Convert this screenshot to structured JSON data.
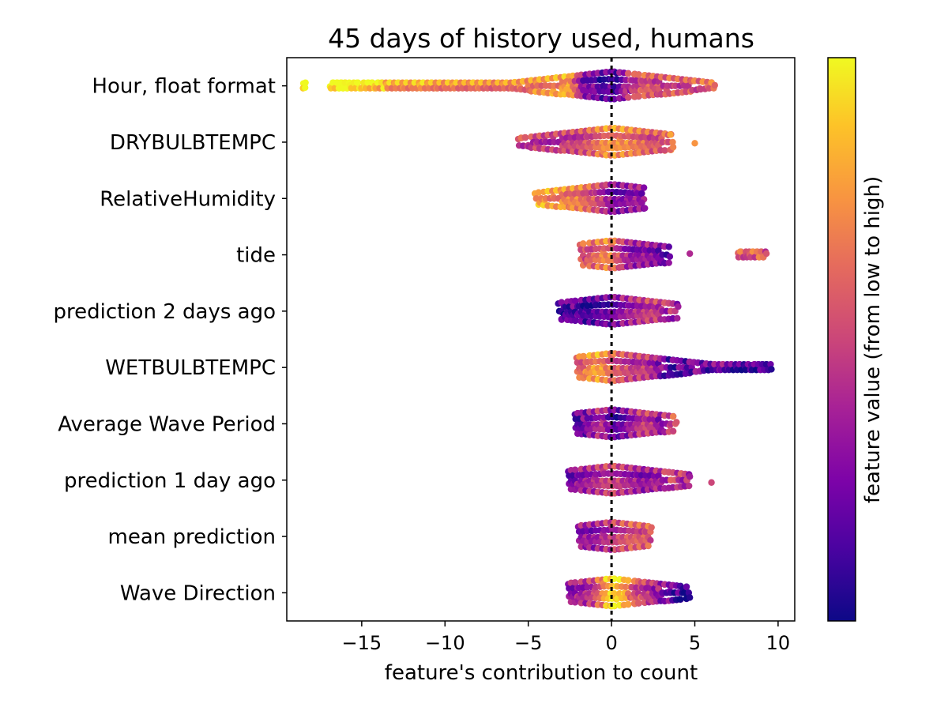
{
  "chart_data": {
    "type": "scatter",
    "subtype": "beeswarm",
    "title": "45 days of history used, humans",
    "xlabel": "feature's contribution to count",
    "ylabel": "",
    "xlim": [
      -19.5,
      11
    ],
    "xticks": [
      -15,
      -10,
      -5,
      0,
      5,
      10
    ],
    "xtick_labels": [
      "−15",
      "−10",
      "−5",
      "0",
      "5",
      "10"
    ],
    "reference_line_x": 0,
    "colormap": "plasma",
    "colorbar_label": "feature value (from low to high)",
    "colors": {
      "low": "#0d0887",
      "mid": "#cc4778",
      "high": "#f0f921"
    },
    "grid": false,
    "features": [
      {
        "name": "Hour, float format",
        "points": [
          [
            -18.5,
            1.0
          ],
          [
            -18.4,
            1.0
          ],
          [
            -16.9,
            1.0
          ],
          [
            -15.7,
            0.98
          ],
          [
            -15.4,
            0.97
          ],
          [
            -15.1,
            0.97
          ],
          [
            -14.8,
            0.95
          ],
          [
            -14.2,
            0.9
          ],
          [
            -13.5,
            0.82
          ],
          [
            -13.0,
            0.78
          ],
          [
            -12.5,
            0.8
          ],
          [
            -12.0,
            0.75
          ],
          [
            -11.5,
            0.85
          ],
          [
            -11.0,
            0.78
          ],
          [
            -10.5,
            0.75
          ],
          [
            -10.0,
            0.72
          ],
          [
            -9.5,
            0.8
          ],
          [
            -9.0,
            0.7
          ],
          [
            -8.5,
            0.72
          ],
          [
            -8.0,
            0.78
          ],
          [
            -7.5,
            0.7
          ],
          [
            -7.0,
            0.68
          ],
          [
            -6.5,
            0.75
          ],
          [
            -6.0,
            0.7
          ],
          [
            -5.5,
            0.72
          ],
          [
            -5.0,
            0.68
          ],
          [
            -4.5,
            0.75
          ],
          [
            -4.0,
            0.7
          ],
          [
            -3.5,
            0.8
          ],
          [
            -3.0,
            0.72
          ],
          [
            -2.5,
            0.85
          ],
          [
            -2.0,
            0.5
          ],
          [
            -1.5,
            0.2
          ],
          [
            -1.0,
            0.3
          ],
          [
            -0.5,
            0.1
          ],
          [
            0.0,
            0.25
          ],
          [
            0.3,
            0.05
          ],
          [
            0.8,
            0.4
          ],
          [
            1.2,
            0.45
          ],
          [
            1.8,
            0.55
          ],
          [
            2.3,
            0.6
          ],
          [
            2.8,
            0.5
          ],
          [
            3.3,
            0.55
          ],
          [
            3.8,
            0.6
          ],
          [
            4.3,
            0.5
          ],
          [
            4.8,
            0.6
          ],
          [
            5.3,
            0.55
          ],
          [
            5.8,
            0.65
          ],
          [
            6.2,
            0.6
          ]
        ]
      },
      {
        "name": "DRYBULBTEMPC",
        "points": [
          [
            -5.6,
            0.55
          ],
          [
            -5.0,
            0.45
          ],
          [
            -4.5,
            0.5
          ],
          [
            -4.0,
            0.45
          ],
          [
            -3.5,
            0.45
          ],
          [
            -3.0,
            0.48
          ],
          [
            -2.5,
            0.5
          ],
          [
            -2.0,
            0.5
          ],
          [
            -1.5,
            0.55
          ],
          [
            -1.0,
            0.6
          ],
          [
            -0.5,
            0.7
          ],
          [
            0.0,
            0.75
          ],
          [
            0.5,
            0.72
          ],
          [
            1.0,
            0.7
          ],
          [
            1.5,
            0.65
          ],
          [
            2.0,
            0.62
          ],
          [
            2.5,
            0.55
          ],
          [
            3.0,
            0.6
          ],
          [
            3.4,
            0.55
          ],
          [
            3.7,
            0.7
          ],
          [
            5.0,
            0.75
          ]
        ]
      },
      {
        "name": "RelativeHumidity",
        "points": [
          [
            -4.6,
            0.8
          ],
          [
            -4.3,
            0.75
          ],
          [
            -4.0,
            0.8
          ],
          [
            -3.5,
            0.72
          ],
          [
            -3.0,
            0.75
          ],
          [
            -2.5,
            0.68
          ],
          [
            -2.0,
            0.7
          ],
          [
            -1.5,
            0.62
          ],
          [
            -1.0,
            0.55
          ],
          [
            -0.5,
            0.45
          ],
          [
            0.0,
            0.3
          ],
          [
            0.5,
            0.25
          ],
          [
            1.0,
            0.3
          ],
          [
            1.5,
            0.35
          ],
          [
            2.0,
            0.3
          ]
        ]
      },
      {
        "name": "tide",
        "points": [
          [
            -1.9,
            0.6
          ],
          [
            -1.5,
            0.55
          ],
          [
            -1.0,
            0.6
          ],
          [
            -0.5,
            0.7
          ],
          [
            0.0,
            0.68
          ],
          [
            0.5,
            0.5
          ],
          [
            1.0,
            0.35
          ],
          [
            1.5,
            0.3
          ],
          [
            2.0,
            0.35
          ],
          [
            2.5,
            0.3
          ],
          [
            3.0,
            0.25
          ],
          [
            3.5,
            0.2
          ],
          [
            4.7,
            0.4
          ],
          [
            7.6,
            0.6
          ],
          [
            7.9,
            0.55
          ],
          [
            8.1,
            0.5
          ],
          [
            8.3,
            0.6
          ],
          [
            9.3,
            0.55
          ]
        ]
      },
      {
        "name": "prediction 2 days ago",
        "points": [
          [
            -3.2,
            0.1
          ],
          [
            -2.8,
            0.15
          ],
          [
            -2.0,
            0.2
          ],
          [
            -1.5,
            0.1
          ],
          [
            -1.0,
            0.15
          ],
          [
            -0.5,
            0.2
          ],
          [
            0.0,
            0.2
          ],
          [
            0.5,
            0.3
          ],
          [
            1.0,
            0.35
          ],
          [
            1.5,
            0.4
          ],
          [
            2.0,
            0.45
          ],
          [
            2.5,
            0.5
          ],
          [
            3.0,
            0.45
          ],
          [
            4.0,
            0.35
          ]
        ]
      },
      {
        "name": "WETBULBTEMPC",
        "points": [
          [
            -2.1,
            0.6
          ],
          [
            -1.5,
            0.65
          ],
          [
            -1.0,
            0.8
          ],
          [
            -0.5,
            0.75
          ],
          [
            0.0,
            0.6
          ],
          [
            0.5,
            0.55
          ],
          [
            1.0,
            0.5
          ],
          [
            1.5,
            0.45
          ],
          [
            2.0,
            0.5
          ],
          [
            2.5,
            0.4
          ],
          [
            3.5,
            0.15
          ],
          [
            4.5,
            0.2
          ],
          [
            5.5,
            0.25
          ],
          [
            6.0,
            0.15
          ],
          [
            6.5,
            0.35
          ],
          [
            7.0,
            0.2
          ],
          [
            7.5,
            0.15
          ],
          [
            8.0,
            0.1
          ],
          [
            8.4,
            0.15
          ],
          [
            9.6,
            0.05
          ]
        ]
      },
      {
        "name": "Average Wave Period",
        "points": [
          [
            -2.2,
            0.15
          ],
          [
            -1.5,
            0.25
          ],
          [
            -1.0,
            0.35
          ],
          [
            -0.5,
            0.45
          ],
          [
            0.0,
            0.2
          ],
          [
            0.5,
            0.15
          ],
          [
            1.0,
            0.3
          ],
          [
            1.5,
            0.4
          ],
          [
            2.0,
            0.5
          ],
          [
            2.5,
            0.45
          ],
          [
            3.0,
            0.3
          ],
          [
            3.5,
            0.5
          ],
          [
            3.9,
            0.55
          ]
        ]
      },
      {
        "name": "prediction 1 day ago",
        "points": [
          [
            -2.6,
            0.2
          ],
          [
            -2.0,
            0.3
          ],
          [
            -1.5,
            0.35
          ],
          [
            -1.0,
            0.4
          ],
          [
            -0.5,
            0.45
          ],
          [
            0.0,
            0.5
          ],
          [
            0.5,
            0.45
          ],
          [
            1.0,
            0.4
          ],
          [
            1.5,
            0.35
          ],
          [
            2.0,
            0.3
          ],
          [
            2.5,
            0.35
          ],
          [
            3.0,
            0.4
          ],
          [
            4.0,
            0.5
          ],
          [
            4.7,
            0.35
          ],
          [
            6.0,
            0.5
          ]
        ]
      },
      {
        "name": "mean prediction",
        "points": [
          [
            -2.0,
            0.3
          ],
          [
            -1.5,
            0.35
          ],
          [
            -1.0,
            0.3
          ],
          [
            -0.5,
            0.4
          ],
          [
            0.0,
            0.45
          ],
          [
            0.5,
            0.5
          ],
          [
            1.0,
            0.55
          ],
          [
            1.5,
            0.6
          ],
          [
            2.0,
            0.55
          ],
          [
            2.4,
            0.6
          ]
        ]
      },
      {
        "name": "Wave Direction",
        "points": [
          [
            -2.6,
            0.3
          ],
          [
            -2.0,
            0.35
          ],
          [
            -1.5,
            0.4
          ],
          [
            -1.0,
            0.5
          ],
          [
            -0.5,
            0.7
          ],
          [
            0.0,
            0.95
          ],
          [
            0.3,
            0.9
          ],
          [
            0.8,
            0.85
          ],
          [
            1.2,
            0.6
          ],
          [
            1.8,
            0.5
          ],
          [
            2.3,
            0.45
          ],
          [
            3.0,
            0.3
          ],
          [
            3.5,
            0.25
          ],
          [
            4.3,
            0.05
          ],
          [
            4.7,
            0.05
          ]
        ]
      }
    ]
  }
}
